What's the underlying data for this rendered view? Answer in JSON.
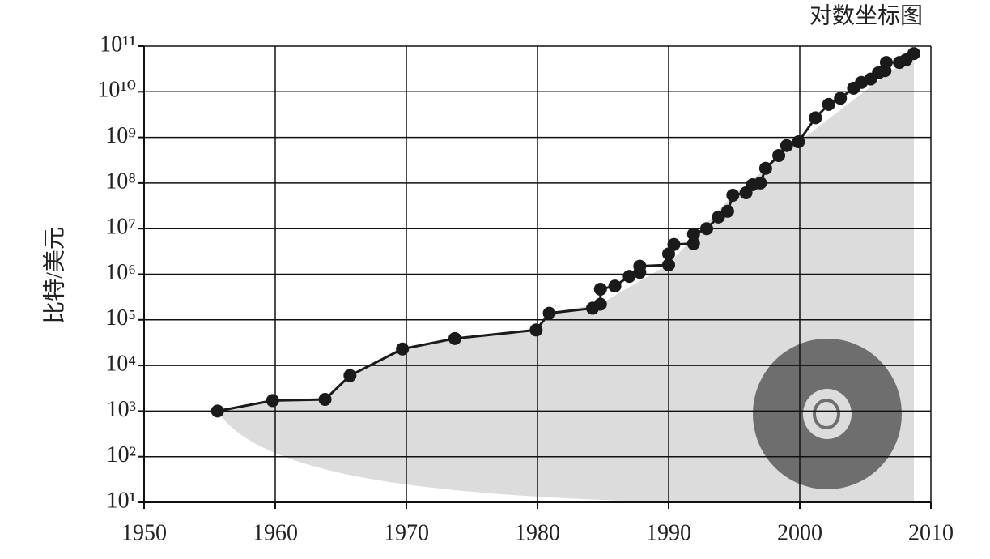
{
  "chart_data": {
    "type": "line",
    "title": "对数坐标图",
    "y_label": "比特/美元",
    "x": [
      1955.6,
      1959.8,
      1963.8,
      1965.7,
      1969.7,
      1973.7,
      1979.9,
      1980.9,
      1984.2,
      1984.8,
      1984.8,
      1985.9,
      1987.0,
      1987.8,
      1987.8,
      1990.0,
      1990.0,
      1990.4,
      1991.9,
      1991.9,
      1992.9,
      1993.8,
      1994.5,
      1994.9,
      1995.9,
      1996.4,
      1997.0,
      1997.4,
      1998.4,
      1999.0,
      1999.9,
      2001.2,
      2002.2,
      2003.1,
      2004.1,
      2004.7,
      2005.4,
      2006.0,
      2006.5,
      2006.6,
      2007.6,
      2008.1,
      2008.7
    ],
    "series": [
      {
        "name": "比特/美元",
        "color": "#1a1a1a",
        "values": [
          1000,
          1700,
          1800,
          6000,
          23000,
          39000,
          60000,
          140000,
          180000,
          220000,
          470000,
          550000,
          900000,
          1100000,
          1500000,
          1600000,
          2800000,
          4500000,
          4700000,
          7600000,
          10000000,
          18000000,
          24000000,
          54000000,
          61000000,
          92000000,
          100000000,
          210000000,
          400000000,
          660000000,
          800000000,
          2700000000,
          5300000000,
          7200000000,
          12000000000,
          16000000000,
          19000000000,
          26000000000,
          29000000000,
          44000000000,
          44000000000,
          50000000000,
          69000000000
        ]
      }
    ],
    "xlim": [
      1950,
      2010
    ],
    "xticks": [
      1950,
      1960,
      1970,
      1980,
      1990,
      2000,
      2010
    ],
    "ylim": [
      10,
      100000000000
    ],
    "ylog": true,
    "grid": true,
    "yticks": [
      {
        "value": 10,
        "label": "10¹"
      },
      {
        "value": 100,
        "label": "10²"
      },
      {
        "value": 1000,
        "label": "10³"
      },
      {
        "value": 10000,
        "label": "10⁴"
      },
      {
        "value": 100000,
        "label": "10⁵"
      },
      {
        "value": 1000000,
        "label": "10⁶"
      },
      {
        "value": 10000000,
        "label": "10⁷"
      },
      {
        "value": 100000000,
        "label": "10⁸"
      },
      {
        "value": 1000000000,
        "label": "10⁹"
      },
      {
        "value": 10000000000,
        "label": "10¹⁰"
      },
      {
        "value": 100000000000,
        "label": "10¹¹"
      }
    ]
  }
}
